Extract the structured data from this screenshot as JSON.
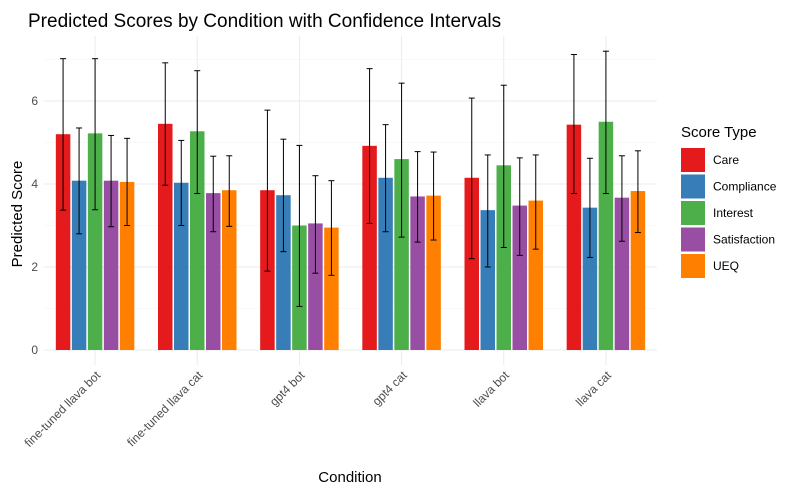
{
  "chart_data": {
    "type": "bar",
    "title": "Predicted Scores by Condition with Confidence Intervals",
    "xlabel": "Condition",
    "ylabel": "Predicted Score",
    "ylim": [
      0,
      7.2
    ],
    "yticks": [
      0,
      2,
      4,
      6
    ],
    "grid": true,
    "legend": {
      "title": "Score Type",
      "position": "right"
    },
    "categories": [
      "fine-tuned llava bot",
      "fine-tuned llava cat",
      "gpt4 bot",
      "gpt4 cat",
      "llava bot",
      "llava cat"
    ],
    "series": [
      {
        "name": "Care",
        "color": "#e41a1c",
        "values": [
          5.2,
          5.45,
          3.85,
          4.92,
          4.15,
          5.43
        ],
        "ci_low": [
          3.37,
          3.97,
          1.9,
          3.05,
          2.2,
          3.77
        ],
        "ci_high": [
          7.02,
          6.92,
          5.78,
          6.78,
          6.07,
          7.12
        ]
      },
      {
        "name": "Compliance",
        "color": "#377eb8",
        "values": [
          4.08,
          4.03,
          3.73,
          4.15,
          3.37,
          3.43
        ],
        "ci_low": [
          2.8,
          3.0,
          2.37,
          2.85,
          2.0,
          2.23
        ],
        "ci_high": [
          5.35,
          5.05,
          5.08,
          5.43,
          4.7,
          4.62
        ]
      },
      {
        "name": "Interest",
        "color": "#4daf4a",
        "values": [
          5.22,
          5.27,
          3.0,
          4.6,
          4.45,
          5.5
        ],
        "ci_low": [
          3.38,
          3.77,
          1.05,
          2.72,
          2.47,
          3.77
        ],
        "ci_high": [
          7.02,
          6.73,
          4.93,
          6.43,
          6.38,
          7.2
        ]
      },
      {
        "name": "Satisfaction",
        "color": "#984ea3",
        "values": [
          4.08,
          3.78,
          3.05,
          3.7,
          3.48,
          3.67
        ],
        "ci_low": [
          2.97,
          2.85,
          1.85,
          2.6,
          2.28,
          2.62
        ],
        "ci_high": [
          5.17,
          4.67,
          4.2,
          4.78,
          4.63,
          4.68
        ]
      },
      {
        "name": "UEQ",
        "color": "#ff7f00",
        "values": [
          4.05,
          3.85,
          2.95,
          3.72,
          3.6,
          3.83
        ],
        "ci_low": [
          3.0,
          2.98,
          1.8,
          2.65,
          2.43,
          2.83
        ],
        "ci_high": [
          5.1,
          4.68,
          4.08,
          4.77,
          4.7,
          4.8
        ]
      }
    ]
  }
}
